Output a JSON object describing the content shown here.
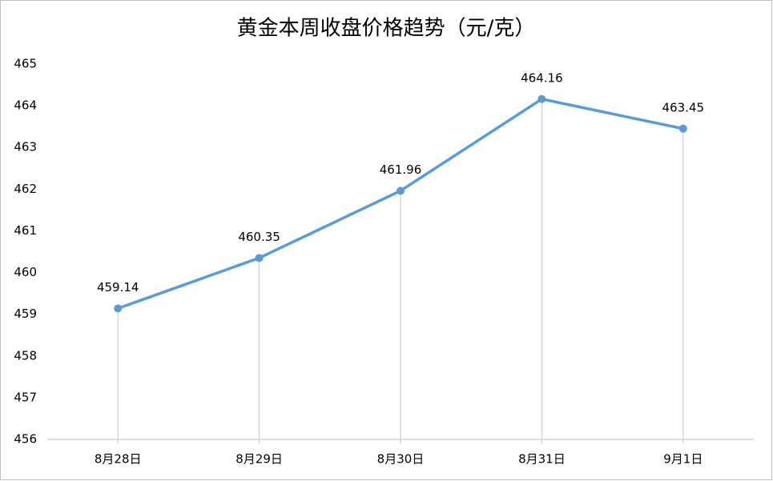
{
  "chart_data": {
    "type": "line",
    "title": "黄金本周收盘价格趋势（元/克）",
    "categories": [
      "8月28日",
      "8月29日",
      "8月30日",
      "8月31日",
      "9月1日"
    ],
    "values": [
      459.14,
      460.35,
      461.96,
      464.16,
      463.45
    ],
    "color": "#5b9bd5",
    "ylim": [
      456,
      465
    ],
    "yticks": [
      456,
      457,
      458,
      459,
      460,
      461,
      462,
      463,
      464,
      465
    ],
    "grid": false,
    "drop_lines": true,
    "data_labels": true
  }
}
